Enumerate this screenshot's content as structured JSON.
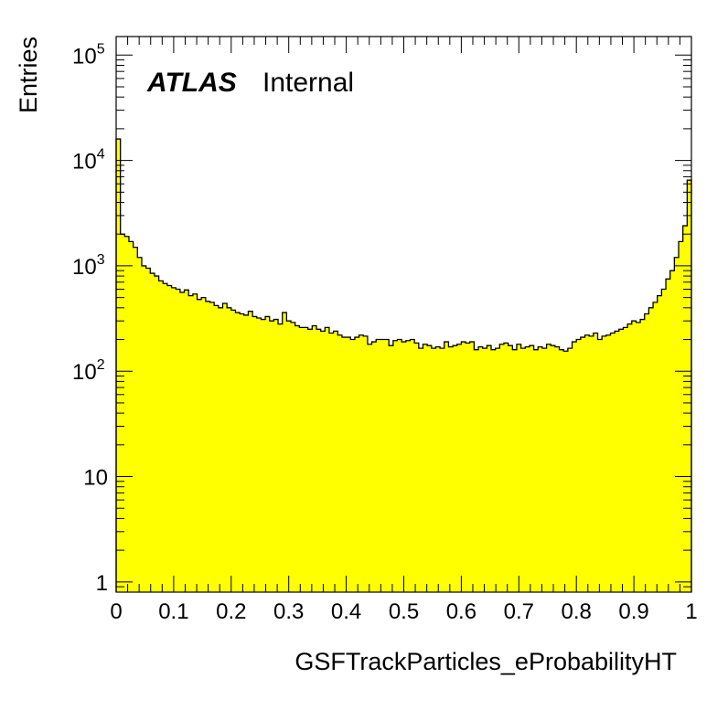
{
  "colors": {
    "fill": "#ffff00",
    "line": "#000000",
    "background": "#ffffff"
  },
  "labels": {
    "experiment": "ATLAS",
    "status": "Internal"
  },
  "chart_data": {
    "type": "bar",
    "subtype": "histogram",
    "xlabel": "GSFTrackParticles_eProbabilityHT",
    "ylabel": "Entries",
    "xlim": [
      0,
      1
    ],
    "ylim": [
      0.8,
      150000
    ],
    "yscale": "log",
    "grid": false,
    "legend": "none",
    "x_ticks": [
      "0",
      "0.1",
      "0.2",
      "0.3",
      "0.4",
      "0.5",
      "0.6",
      "0.7",
      "0.8",
      "0.9",
      "1"
    ],
    "y_ticks": [
      {
        "value": 1,
        "label": "1"
      },
      {
        "value": 10,
        "label": "10"
      },
      {
        "value": 100,
        "label": "10",
        "exp": "2"
      },
      {
        "value": 1000,
        "label": "10",
        "exp": "3"
      },
      {
        "value": 10000,
        "label": "10",
        "exp": "4"
      },
      {
        "value": 100000,
        "label": "10",
        "exp": "5"
      }
    ],
    "bin_width": 0.01,
    "values": [
      16000,
      2000,
      1900,
      1700,
      1500,
      1200,
      1000,
      950,
      850,
      800,
      720,
      680,
      650,
      620,
      600,
      560,
      590,
      520,
      540,
      480,
      500,
      460,
      450,
      420,
      400,
      440,
      400,
      380,
      360,
      350,
      340,
      370,
      330,
      320,
      310,
      330,
      300,
      310,
      280,
      360,
      300,
      290,
      270,
      260,
      260,
      250,
      270,
      250,
      240,
      260,
      230,
      240,
      220,
      210,
      210,
      200,
      210,
      220,
      215,
      180,
      190,
      200,
      200,
      200,
      175,
      195,
      200,
      190,
      195,
      200,
      185,
      165,
      180,
      175,
      165,
      170,
      165,
      190,
      170,
      175,
      180,
      190,
      185,
      190,
      160,
      170,
      165,
      175,
      160,
      165,
      180,
      185,
      175,
      160,
      180,
      165,
      170,
      175,
      160,
      170,
      165,
      180,
      175,
      170,
      160,
      155,
      165,
      190,
      200,
      210,
      220,
      215,
      230,
      200,
      215,
      220,
      230,
      240,
      250,
      260,
      280,
      300,
      290,
      310,
      350,
      400,
      450,
      520,
      600,
      750,
      900,
      1200,
      1700,
      2400,
      6500
    ]
  }
}
